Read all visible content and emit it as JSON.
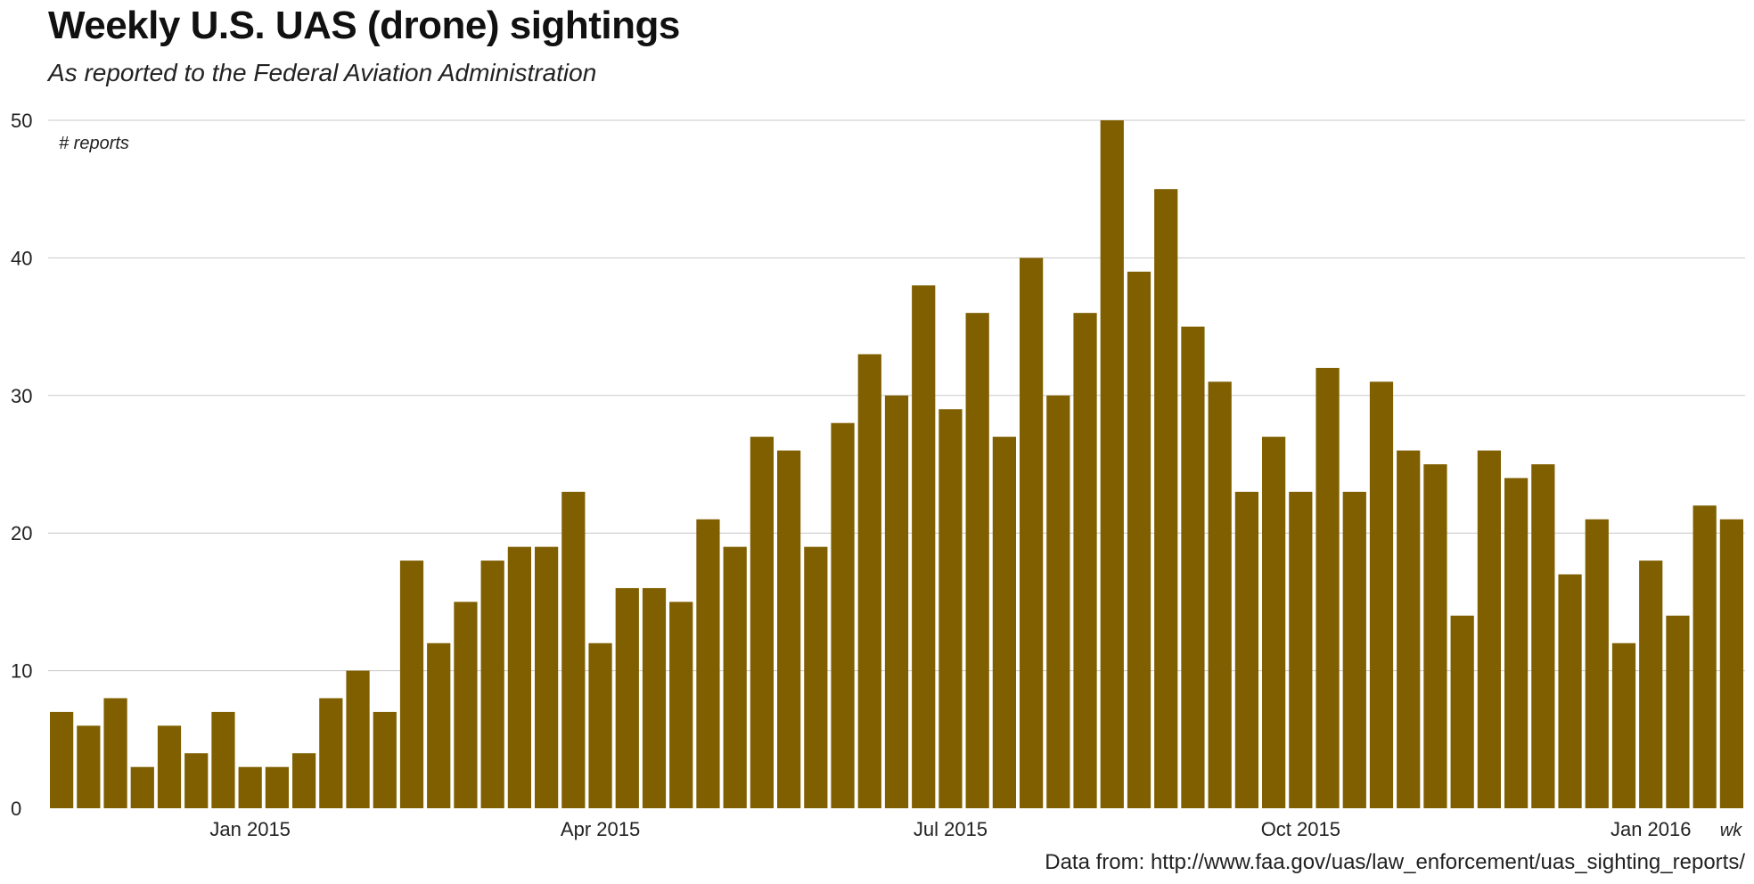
{
  "chart_data": {
    "type": "bar",
    "title": "Weekly U.S. UAS (drone) sightings",
    "subtitle": "As reported to the Federal Aviation Administration",
    "ylabel": "# reports",
    "xlabel": "wk",
    "caption": "Data from: http://www.faa.gov/uas/law_enforcement/uas_sighting_reports/",
    "ylim": [
      0,
      50
    ],
    "y_ticks": [
      0,
      10,
      20,
      30,
      40,
      50
    ],
    "x_tick_labels": [
      {
        "label": "Jan 2015",
        "at_bar": 7.5
      },
      {
        "label": "Apr 2015",
        "at_bar": 20.5
      },
      {
        "label": "Jul 2015",
        "at_bar": 33.5
      },
      {
        "label": "Oct 2015",
        "at_bar": 46.5
      },
      {
        "label": "Jan 2016",
        "at_bar": 59.5
      }
    ],
    "grid": true,
    "bar_color": "#7f5f00",
    "values": [
      7,
      6,
      8,
      3,
      6,
      4,
      7,
      3,
      3,
      4,
      8,
      10,
      7,
      18,
      12,
      15,
      18,
      19,
      19,
      23,
      12,
      16,
      16,
      15,
      21,
      19,
      27,
      26,
      19,
      28,
      33,
      30,
      38,
      29,
      36,
      27,
      40,
      30,
      36,
      50,
      39,
      45,
      35,
      31,
      23,
      27,
      23,
      32,
      23,
      31,
      26,
      25,
      14,
      26,
      24,
      25,
      17,
      21,
      12,
      18,
      14,
      22,
      21
    ]
  }
}
